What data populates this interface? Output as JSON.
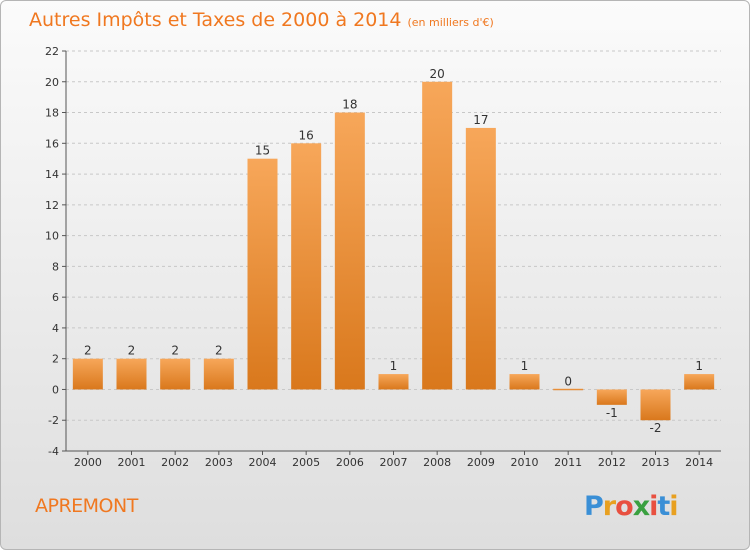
{
  "title": {
    "main": "Autres Impôts et Taxes de 2000 à 2014",
    "unit": "(en milliers d'€)"
  },
  "commune": "APREMONT",
  "brand": {
    "letters": [
      "P",
      "r",
      "o",
      "x",
      "i",
      "t",
      "i"
    ],
    "colors": [
      "#3a8fd6",
      "#e8a020",
      "#e85040",
      "#3aa040",
      "#e85040",
      "#3a8fd6",
      "#e8a020"
    ]
  },
  "colors": {
    "bar_light": "#f7a75a",
    "bar_dark": "#d9781c",
    "text_accent": "#f07820",
    "grid": "#c8c8c8",
    "axis_text": "#333333"
  },
  "chart_data": {
    "type": "bar",
    "categories": [
      "2000",
      "2001",
      "2002",
      "2003",
      "2004",
      "2005",
      "2006",
      "2007",
      "2008",
      "2009",
      "2010",
      "2011",
      "2012",
      "2013",
      "2014"
    ],
    "values": [
      2,
      2,
      2,
      2,
      15,
      16,
      18,
      1,
      20,
      17,
      1,
      0,
      -1,
      -2,
      1
    ],
    "labels": [
      "2",
      "2",
      "2",
      "2",
      "15",
      "16",
      "18",
      "1",
      "20",
      "17",
      "1",
      "0",
      "-1",
      "-2",
      "1"
    ],
    "yticks": [
      -4,
      -2,
      0,
      2,
      4,
      6,
      8,
      10,
      12,
      14,
      16,
      18,
      20,
      22
    ],
    "ylim": [
      -4,
      22
    ],
    "grid": true
  }
}
